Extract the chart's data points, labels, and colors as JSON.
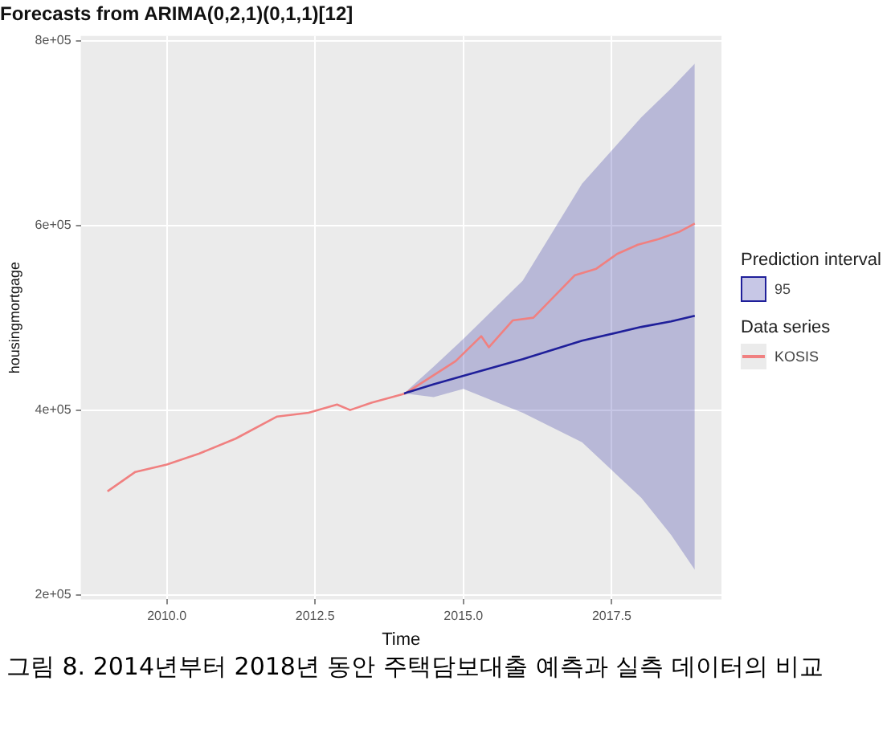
{
  "chart_data": {
    "type": "line",
    "title": "Forecasts from ARIMA(0,2,1)(0,1,1)[12]",
    "xlabel": "Time",
    "ylabel": "housingmortgage",
    "legend_title": [
      "Prediction interval",
      "Data series"
    ],
    "annotations": [
      "그림 8. 2014년부터 2018년 동안  주택담보대출 예측과 실측 데이터의 비교"
    ],
    "xlim": [
      2008.55,
      2019.35
    ],
    "xticks": [
      {
        "value": 2010,
        "label": "2010.0"
      },
      {
        "value": 2012.5,
        "label": "2012.5"
      },
      {
        "value": 2015,
        "label": "2015.0"
      },
      {
        "value": 2017.5,
        "label": "2017.5"
      }
    ],
    "ylim": [
      195000,
      805000
    ],
    "yticks": [
      {
        "value": 200000,
        "label": "2e+05"
      },
      {
        "value": 400000,
        "label": "4e+05"
      },
      {
        "value": 600000,
        "label": "6e+05"
      },
      {
        "value": 800000,
        "label": "8e+05"
      }
    ],
    "grid": true,
    "legend": "right",
    "marker": "none",
    "series": [
      {
        "name": "95",
        "color": "#1f1f9a",
        "x": [
          2014.0,
          2014.5,
          2015.0,
          2016.0,
          2017.0,
          2018.0,
          2018.5,
          2018.9
        ],
        "values": [
          418000,
          428000,
          437000,
          455000,
          475000,
          490000,
          496000,
          502000
        ],
        "lower": [
          418000,
          414000,
          423000,
          397000,
          365000,
          305000,
          265000,
          227000
        ],
        "upper": [
          418000,
          447000,
          477000,
          540000,
          645000,
          717000,
          748000,
          775000
        ]
      },
      {
        "name": "KOSIS",
        "color": "#f08080",
        "x": [
          2009.0,
          2009.47,
          2010.0,
          2010.55,
          2011.16,
          2011.86,
          2012.39,
          2012.87,
          2013.09,
          2013.45,
          2014.02,
          2014.87,
          2015.3,
          2015.43,
          2015.83,
          2016.18,
          2016.88,
          2017.24,
          2017.59,
          2017.94,
          2018.29,
          2018.64,
          2018.9
        ],
        "values": [
          312000,
          333000,
          341000,
          353000,
          369000,
          393000,
          397000,
          406000,
          400000,
          408000,
          418000,
          453000,
          480000,
          468000,
          497000,
          500000,
          546000,
          553000,
          569000,
          579000,
          585000,
          593000,
          602000
        ]
      }
    ]
  }
}
